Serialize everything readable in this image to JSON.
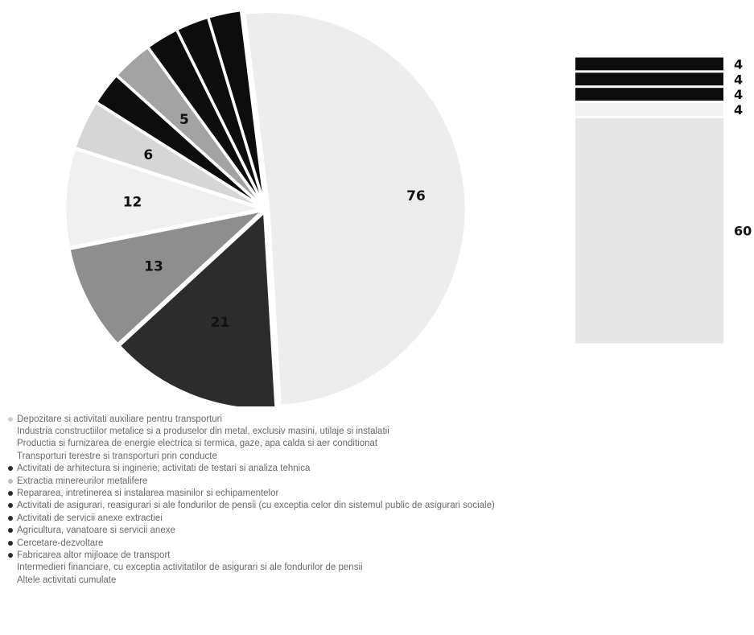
{
  "chart_data": {
    "type": "bar-of-pie",
    "pie": {
      "slices": [
        {
          "label": "Altele activitati cumulate",
          "value": 76,
          "color": "#ededed",
          "value_label": "76"
        },
        {
          "label": "Activitati de inginerie",
          "value": 21,
          "color": "#2c2c2c",
          "value_label": "21"
        },
        {
          "label": "Extractia",
          "value": 13,
          "color": "#8e8e8e",
          "value_label": "13"
        },
        {
          "label": "Reparare",
          "value": 12,
          "color": "#f0f0f0",
          "value_label": "12"
        },
        {
          "label": "Asigurari",
          "value": 6,
          "color": "#d6d6d6",
          "value_label": "6"
        },
        {
          "label": "Servicii anexe extractiei",
          "value": 4,
          "color": "#0d0d0d",
          "value_label": ""
        },
        {
          "label": "Agricultura",
          "value": 5,
          "color": "#a3a3a3",
          "value_label": "5"
        },
        {
          "label": "Cercetare",
          "value": 4,
          "color": "#0d0d0d",
          "value_label": ""
        },
        {
          "label": "Fabricarea altor mijloace de transport",
          "value": 4,
          "color": "#0d0d0d",
          "value_label": ""
        },
        {
          "label": "Intermedieri financiare",
          "value": 4,
          "color": "#0d0d0d",
          "value_label": ""
        }
      ]
    },
    "bar": {
      "segments": [
        {
          "value": 60,
          "color": "#e6e6e6",
          "value_label": "60"
        },
        {
          "value": 4,
          "color": "#f2f2f2",
          "value_label": "4"
        },
        {
          "value": 4,
          "color": "#0d0d0d",
          "value_label": "4"
        },
        {
          "value": 4,
          "color": "#0d0d0d",
          "value_label": "4"
        },
        {
          "value": 4,
          "color": "#0d0d0d",
          "value_label": "4"
        }
      ]
    },
    "legend": [
      {
        "text": "Depozitare si activitati auxiliare pentru transporturi",
        "color": "#d0d0d0"
      },
      {
        "text": "Industria constructiilor metalice si a produselor din metal, exclusiv masini, utilaje si instalatii",
        "color": "#ffffff"
      },
      {
        "text": "Productia si furnizarea de energie electrica si termica, gaze, apa calda si aer conditionat",
        "color": "#ffffff"
      },
      {
        "text": "Transporturi terestre si transporturi prin conducte",
        "color": "#ffffff"
      },
      {
        "text": "Activitati de arhitectura si inginerie; activitati de testari si analiza tehnica",
        "color": "#2c2c2c"
      },
      {
        "text": "Extractia minereurilor metalifere",
        "color": "#bdbdbd"
      },
      {
        "text": "Repararea, intretinerea si instalarea masinilor si echipamentelor",
        "color": "#2c2c2c"
      },
      {
        "text": "Activitati de asigurari, reasigurari si ale fondurilor de pensii (cu exceptia celor din sistemul public de asigurari sociale)",
        "color": "#2c2c2c"
      },
      {
        "text": "Activitati de servicii anexe extractiei",
        "color": "#2c2c2c"
      },
      {
        "text": "Agricultura, vanatoare si servicii anexe",
        "color": "#2c2c2c"
      },
      {
        "text": "Cercetare-dezvoltare",
        "color": "#2c2c2c"
      },
      {
        "text": "Fabricarea altor mijloace de transport",
        "color": "#2c2c2c"
      },
      {
        "text": "Intermedieri financiare, cu exceptia activitatilor de asigurari si ale fondurilor de pensii",
        "color": "#ffffff"
      },
      {
        "text": "Altele activitati cumulate",
        "color": "#ffffff"
      }
    ]
  }
}
